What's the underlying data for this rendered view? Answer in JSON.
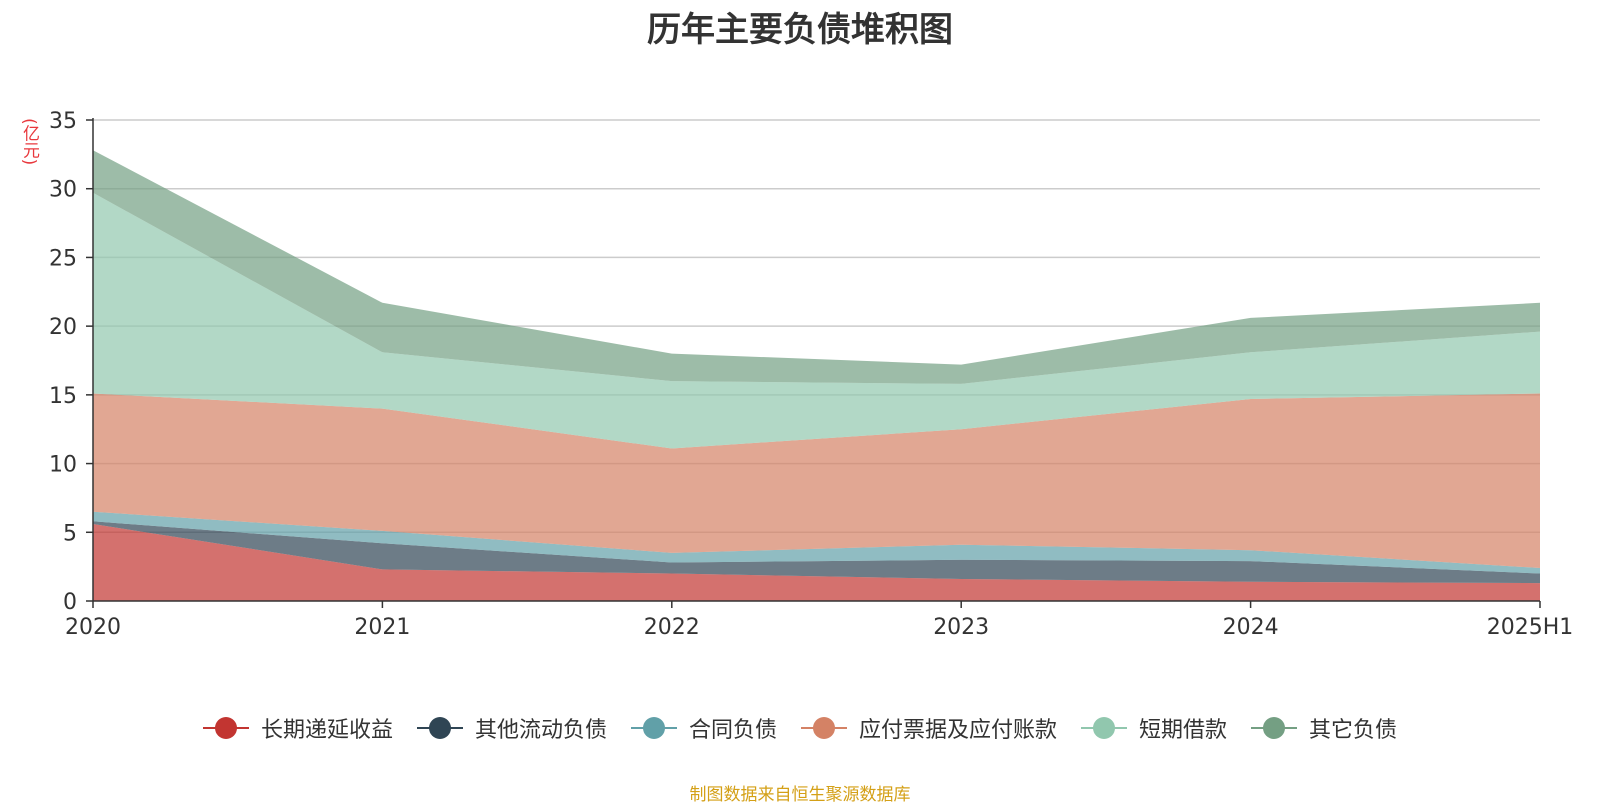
{
  "chart_data": {
    "type": "area",
    "stacked": true,
    "title": "历年主要负债堆积图",
    "ylabel": "(亿元)",
    "categories": [
      "2020",
      "2021",
      "2022",
      "2023",
      "2024",
      "2025H1"
    ],
    "ylim": [
      0,
      35
    ],
    "yticks": [
      0,
      5,
      10,
      15,
      20,
      25,
      30,
      35
    ],
    "grid": true,
    "legend_position": "bottom",
    "series": [
      {
        "name": "长期递延收益",
        "color": "#c23531",
        "values": [
          5.6,
          2.3,
          2.0,
          1.6,
          1.4,
          1.3
        ]
      },
      {
        "name": "其他流动负债",
        "color": "#2f4554",
        "values": [
          0.2,
          1.9,
          0.8,
          1.4,
          1.5,
          0.7
        ]
      },
      {
        "name": "合同负债",
        "color": "#61a0a8",
        "values": [
          0.7,
          0.9,
          0.7,
          1.1,
          0.8,
          0.4
        ]
      },
      {
        "name": "应付票据及应付账款",
        "color": "#d48265",
        "values": [
          8.6,
          8.9,
          7.6,
          8.4,
          11.0,
          12.7
        ]
      },
      {
        "name": "短期借款",
        "color": "#91c7ae",
        "values": [
          14.6,
          4.1,
          4.9,
          3.3,
          3.4,
          4.5
        ]
      },
      {
        "name": "其它负债",
        "color": "#749f83",
        "values": [
          3.1,
          3.6,
          2.0,
          1.4,
          2.5,
          2.1
        ]
      }
    ]
  },
  "source_note": "制图数据来自恒生聚源数据库"
}
